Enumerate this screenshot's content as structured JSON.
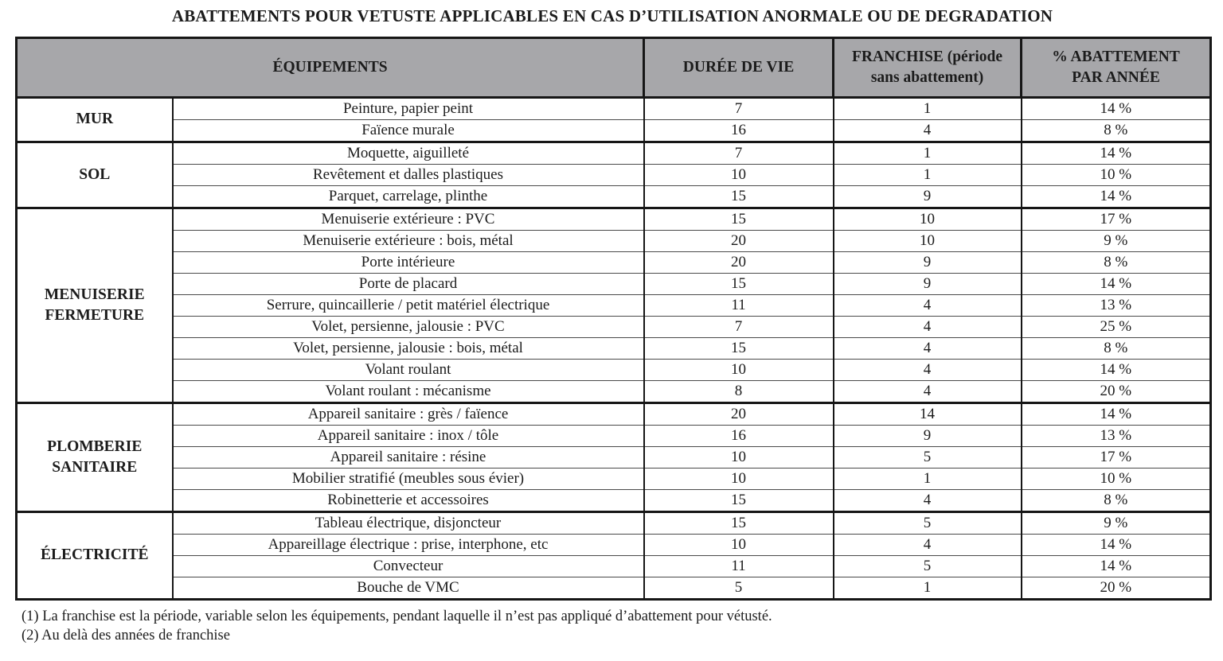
{
  "page": {
    "title": "ABATTEMENTS POUR VETUSTE APPLICABLES EN CAS D’UTILISATION ANORMALE OU DE DEGRADATION"
  },
  "colors": {
    "header_bg": "#a7a7aa",
    "border": "#161616",
    "text": "#1c1c1c"
  },
  "table": {
    "headers": {
      "equipements": "ÉQUIPEMENTS",
      "duree_de_vie": "DURÉE DE VIE",
      "franchise": "FRANCHISE (période sans abattement)",
      "abattement": "% ABATTEMENT PAR ANNÉE"
    },
    "groups": [
      {
        "category": "MUR",
        "rows": [
          {
            "equipment": "Peinture, papier peint",
            "duree": "7",
            "franchise": "1",
            "abattement": "14 %"
          },
          {
            "equipment": "Faïence murale",
            "duree": "16",
            "franchise": "4",
            "abattement": "8 %"
          }
        ]
      },
      {
        "category": "SOL",
        "rows": [
          {
            "equipment": "Moquette, aiguilleté",
            "duree": "7",
            "franchise": "1",
            "abattement": "14 %"
          },
          {
            "equipment": "Revêtement et dalles plastiques",
            "duree": "10",
            "franchise": "1",
            "abattement": "10 %"
          },
          {
            "equipment": "Parquet, carrelage, plinthe",
            "duree": "15",
            "franchise": "9",
            "abattement": "14 %"
          }
        ]
      },
      {
        "category": "MENUISERIE FERMETURE",
        "rows": [
          {
            "equipment": "Menuiserie extérieure : PVC",
            "duree": "15",
            "franchise": "10",
            "abattement": "17 %"
          },
          {
            "equipment": "Menuiserie extérieure : bois, métal",
            "duree": "20",
            "franchise": "10",
            "abattement": "9 %"
          },
          {
            "equipment": "Porte intérieure",
            "duree": "20",
            "franchise": "9",
            "abattement": "8 %"
          },
          {
            "equipment": "Porte de placard",
            "duree": "15",
            "franchise": "9",
            "abattement": "14 %"
          },
          {
            "equipment": "Serrure, quincaillerie / petit matériel électrique",
            "duree": "11",
            "franchise": "4",
            "abattement": "13 %"
          },
          {
            "equipment": "Volet, persienne, jalousie : PVC",
            "duree": "7",
            "franchise": "4",
            "abattement": "25 %"
          },
          {
            "equipment": "Volet, persienne, jalousie : bois, métal",
            "duree": "15",
            "franchise": "4",
            "abattement": "8 %"
          },
          {
            "equipment": "Volant roulant",
            "duree": "10",
            "franchise": "4",
            "abattement": "14 %"
          },
          {
            "equipment": "Volant roulant : mécanisme",
            "duree": "8",
            "franchise": "4",
            "abattement": "20 %"
          }
        ]
      },
      {
        "category": "PLOMBERIE SANITAIRE",
        "rows": [
          {
            "equipment": "Appareil sanitaire : grès / faïence",
            "duree": "20",
            "franchise": "14",
            "abattement": "14 %"
          },
          {
            "equipment": "Appareil sanitaire : inox / tôle",
            "duree": "16",
            "franchise": "9",
            "abattement": "13 %"
          },
          {
            "equipment": "Appareil sanitaire : résine",
            "duree": "10",
            "franchise": "5",
            "abattement": "17 %"
          },
          {
            "equipment": "Mobilier stratifié (meubles sous évier)",
            "duree": "10",
            "franchise": "1",
            "abattement": "10 %"
          },
          {
            "equipment": "Robinetterie et accessoires",
            "duree": "15",
            "franchise": "4",
            "abattement": "8 %"
          }
        ]
      },
      {
        "category": "ÉLECTRICITÉ",
        "rows": [
          {
            "equipment": "Tableau électrique, disjoncteur",
            "duree": "15",
            "franchise": "5",
            "abattement": "9 %"
          },
          {
            "equipment": "Appareillage électrique : prise, interphone, etc",
            "duree": "10",
            "franchise": "4",
            "abattement": "14 %"
          },
          {
            "equipment": "Convecteur",
            "duree": "11",
            "franchise": "5",
            "abattement": "14 %"
          },
          {
            "equipment": "Bouche de VMC",
            "duree": "5",
            "franchise": "1",
            "abattement": "20 %"
          }
        ]
      }
    ]
  },
  "footnotes": [
    "(1) La franchise est la période, variable selon les équipements, pendant laquelle il n’est pas appliqué d’abattement pour vétusté.",
    "(2) Au delà des années de franchise"
  ]
}
